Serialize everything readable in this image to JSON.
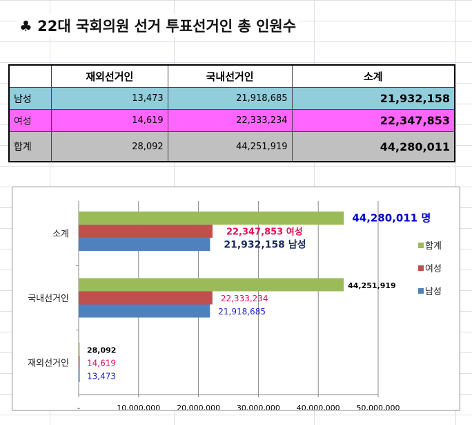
{
  "title": "♣ 22대 국회의원 선거 투표선거인 총 인원수",
  "table": {
    "headers": [
      "",
      "재외선거인",
      "국내선거인",
      "소계"
    ],
    "rows": [
      {
        "label": "남성",
        "values": [
          "13,473",
          "21,918,685",
          "21,932,158"
        ]
      },
      {
        "label": "여성",
        "values": [
          "14,619",
          "22,333,234",
          "22,347,853"
        ]
      },
      {
        "label": "합계",
        "values": [
          "28,092",
          "44,251,919",
          "44,280,011"
        ]
      }
    ]
  },
  "chart_data": {
    "type": "bar",
    "orientation": "horizontal",
    "categories": [
      "소계",
      "국내선거인",
      "재외선거인"
    ],
    "series": [
      {
        "name": "합계",
        "color": "#9bbb59",
        "values": [
          44280011,
          44251919,
          28092
        ],
        "labels": [
          "44,280,011 명",
          "44,251,919",
          "28,092"
        ],
        "label_colors": [
          "#0000cc",
          "#000000",
          "#000000"
        ]
      },
      {
        "name": "여성",
        "color": "#c0504d",
        "values": [
          22347853,
          22333234,
          14619
        ],
        "labels": [
          "22,347,853 여성",
          "22,333,234",
          "14,619"
        ],
        "label_colors": [
          "#e0105a",
          "#e0105a",
          "#e0105a"
        ]
      },
      {
        "name": "남성",
        "color": "#4f81bd",
        "values": [
          21932158,
          21918685,
          13473
        ],
        "labels": [
          "21,932,158 남성",
          "21,918,685",
          "13,473"
        ],
        "label_colors": [
          "#1a2a5a",
          "#2222cc",
          "#2222cc"
        ]
      }
    ],
    "xlim": [
      0,
      50000000
    ],
    "xticks": [
      "-",
      "10,000,000",
      "20,000,000",
      "30,000,000",
      "40,000,000",
      "50,000,000"
    ],
    "legend": "right",
    "grid": true
  }
}
